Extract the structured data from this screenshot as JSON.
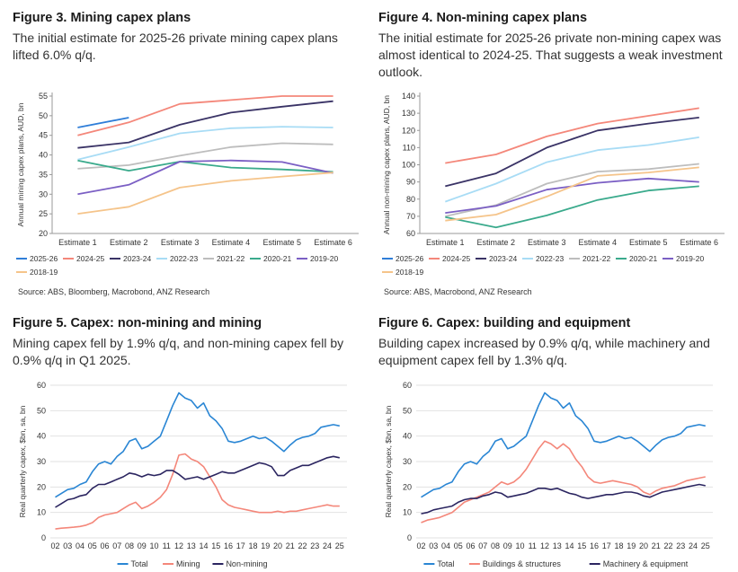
{
  "figures": [
    {
      "title": "Figure 3. Mining capex plans",
      "subtitle": "The initial estimate for 2025-26 private mining capex plans lifted 6.0% q/q.",
      "source": "Source: ABS, Bloomberg, Macrobond, ANZ Research"
    },
    {
      "title": "Figure 4. Non-mining capex plans",
      "subtitle": "The initial estimate for 2025-26 private non-mining capex was almost identical to 2024-25. That suggests a weak investment outlook.",
      "source": "Source: ABS, Macrobond, ANZ Research"
    },
    {
      "title": "Figure 5. Capex: non-mining and mining",
      "subtitle": "Mining capex fell by 1.9% q/q, and non-mining capex fell by 0.9% q/q in Q1 2025.",
      "source": ""
    },
    {
      "title": "Figure 6. Capex: building and equipment",
      "subtitle": "Building capex increased by 0.9% q/q, while machinery and equipment capex fell by 1.3% q/q.",
      "source": ""
    }
  ],
  "chart_data": [
    {
      "type": "line",
      "title": "Figure 3. Mining capex plans",
      "ylabel": "Annual mining capex plans, AUD, bn",
      "ylim": [
        20,
        55
      ],
      "yticks": [
        20,
        25,
        30,
        35,
        40,
        45,
        50,
        55
      ],
      "categories": [
        "Estimate 1",
        "Estimate 2",
        "Estimate 3",
        "Estimate 4",
        "Estimate 5",
        "Estimate 6"
      ],
      "series": [
        {
          "name": "2025-26",
          "color": "#2f7ed8",
          "values": [
            47,
            49.5,
            null,
            null,
            null,
            null
          ]
        },
        {
          "name": "2024-25",
          "color": "#f4877a",
          "values": [
            45,
            48.3,
            53,
            54,
            55,
            55
          ]
        },
        {
          "name": "2023-24",
          "color": "#3a3366",
          "values": [
            41.8,
            43.2,
            47.7,
            50.8,
            52.3,
            53.7
          ]
        },
        {
          "name": "2022-23",
          "color": "#a8dcf5",
          "values": [
            38.8,
            42,
            45.5,
            46.8,
            47.2,
            47
          ]
        },
        {
          "name": "2021-22",
          "color": "#bdbdbd",
          "values": [
            36.5,
            37.4,
            39.8,
            42,
            43,
            42.7
          ]
        },
        {
          "name": "2020-21",
          "color": "#3aaa8c",
          "values": [
            38.6,
            36,
            38.3,
            36.8,
            36.3,
            35.7
          ]
        },
        {
          "name": "2019-20",
          "color": "#7b5fc4",
          "values": [
            30,
            32.4,
            38.3,
            38.6,
            38.2,
            35.4
          ]
        },
        {
          "name": "2018-19",
          "color": "#f5c48a",
          "values": [
            25,
            26.8,
            31.7,
            33.4,
            34.5,
            35.5
          ]
        }
      ]
    },
    {
      "type": "line",
      "title": "Figure 4. Non-mining capex plans",
      "ylabel": "Annual non-mining capex plans, AUD, bn",
      "ylim": [
        60,
        140
      ],
      "yticks": [
        60,
        70,
        80,
        90,
        100,
        110,
        120,
        130,
        140
      ],
      "categories": [
        "Estimate 1",
        "Estimate 2",
        "Estimate 3",
        "Estimate 4",
        "Estimate 5",
        "Estimate 6"
      ],
      "series": [
        {
          "name": "2025-26",
          "color": "#2f7ed8",
          "values": [
            101,
            null,
            null,
            null,
            null,
            null
          ]
        },
        {
          "name": "2024-25",
          "color": "#f4877a",
          "values": [
            101,
            106,
            116.5,
            124,
            128.5,
            133
          ]
        },
        {
          "name": "2023-24",
          "color": "#3a3366",
          "values": [
            87.5,
            95,
            110,
            120,
            124,
            127.5
          ]
        },
        {
          "name": "2022-23",
          "color": "#a8dcf5",
          "values": [
            78.5,
            89,
            101.5,
            108.5,
            111.5,
            116
          ]
        },
        {
          "name": "2021-22",
          "color": "#bdbdbd",
          "values": [
            70,
            76.5,
            89,
            96,
            97.5,
            100.5
          ]
        },
        {
          "name": "2020-21",
          "color": "#3aaa8c",
          "values": [
            69.5,
            63.5,
            70.5,
            79.5,
            85,
            87.5
          ]
        },
        {
          "name": "2019-20",
          "color": "#7b5fc4",
          "values": [
            72,
            76,
            85.5,
            89.5,
            92,
            90
          ]
        },
        {
          "name": "2018-19",
          "color": "#f5c48a",
          "values": [
            67.5,
            71,
            81.5,
            93.5,
            95.5,
            98.5
          ]
        }
      ]
    },
    {
      "type": "line",
      "title": "Figure 5. Capex: non-mining and mining",
      "ylabel": "Real quarterly capex, $bn, sa, bn",
      "ylim": [
        0,
        60
      ],
      "yticks": [
        0,
        10,
        20,
        30,
        40,
        50,
        60
      ],
      "xtick_labels": [
        "02",
        "03",
        "04",
        "05",
        "06",
        "07",
        "08",
        "09",
        "10",
        "11",
        "12",
        "13",
        "14",
        "15",
        "16",
        "17",
        "18",
        "19",
        "20",
        "21",
        "22",
        "23",
        "24",
        "25"
      ],
      "xstart": 2002,
      "xlim": [
        2001.6,
        2025.6
      ],
      "series": [
        {
          "name": "Total",
          "color": "#2a86d4",
          "x": [
            2002.0,
            2002.5,
            2003.0,
            2003.5,
            2004.0,
            2004.5,
            2005.0,
            2005.5,
            2006.0,
            2006.5,
            2007.0,
            2007.5,
            2008.0,
            2008.5,
            2009.0,
            2009.5,
            2010.0,
            2010.5,
            2011.0,
            2011.5,
            2012.0,
            2012.5,
            2013.0,
            2013.5,
            2014.0,
            2014.5,
            2015.0,
            2015.5,
            2016.0,
            2016.5,
            2017.0,
            2017.5,
            2018.0,
            2018.5,
            2019.0,
            2019.5,
            2020.0,
            2020.5,
            2021.0,
            2021.5,
            2022.0,
            2022.5,
            2023.0,
            2023.5,
            2024.0,
            2024.5,
            2025.0
          ],
          "values": [
            16,
            17.5,
            19,
            19.5,
            21,
            22,
            26,
            29,
            30,
            29,
            32,
            34,
            38,
            39,
            35,
            36,
            38,
            40,
            46,
            52,
            57,
            55,
            54,
            51,
            53,
            48,
            46,
            43,
            38,
            37.5,
            38,
            39,
            40,
            39,
            39.5,
            38,
            36,
            34,
            36.5,
            38.5,
            39.5,
            40,
            41,
            43.5,
            44,
            44.5,
            44
          ]
        },
        {
          "name": "Mining",
          "color": "#f4877a",
          "x": [
            2002.0,
            2002.5,
            2003.0,
            2003.5,
            2004.0,
            2004.5,
            2005.0,
            2005.5,
            2006.0,
            2006.5,
            2007.0,
            2007.5,
            2008.0,
            2008.5,
            2009.0,
            2009.5,
            2010.0,
            2010.5,
            2011.0,
            2011.5,
            2012.0,
            2012.5,
            2013.0,
            2013.5,
            2014.0,
            2014.5,
            2015.0,
            2015.5,
            2016.0,
            2016.5,
            2017.0,
            2017.5,
            2018.0,
            2018.5,
            2019.0,
            2019.5,
            2020.0,
            2020.5,
            2021.0,
            2021.5,
            2022.0,
            2022.5,
            2023.0,
            2023.5,
            2024.0,
            2024.5,
            2025.0
          ],
          "values": [
            3.5,
            3.8,
            4,
            4.2,
            4.5,
            5,
            6,
            8,
            9,
            9.5,
            10,
            11.5,
            13,
            14,
            11.5,
            12.5,
            14,
            16,
            19,
            25,
            32.5,
            33,
            31,
            30,
            28,
            24,
            20,
            15,
            13,
            12,
            11.5,
            11,
            10.5,
            10,
            10,
            10,
            10.5,
            10,
            10.5,
            10.5,
            11,
            11.5,
            12,
            12.5,
            13,
            12.5,
            12.5
          ]
        },
        {
          "name": "Non-mining",
          "color": "#2b2560",
          "x": [
            2002.0,
            2002.5,
            2003.0,
            2003.5,
            2004.0,
            2004.5,
            2005.0,
            2005.5,
            2006.0,
            2006.5,
            2007.0,
            2007.5,
            2008.0,
            2008.5,
            2009.0,
            2009.5,
            2010.0,
            2010.5,
            2011.0,
            2011.5,
            2012.0,
            2012.5,
            2013.0,
            2013.5,
            2014.0,
            2014.5,
            2015.0,
            2015.5,
            2016.0,
            2016.5,
            2017.0,
            2017.5,
            2018.0,
            2018.5,
            2019.0,
            2019.5,
            2020.0,
            2020.5,
            2021.0,
            2021.5,
            2022.0,
            2022.5,
            2023.0,
            2023.5,
            2024.0,
            2024.5,
            2025.0
          ],
          "values": [
            12,
            13.5,
            15,
            15.5,
            16.5,
            17,
            19.5,
            21,
            21,
            22,
            23,
            24,
            25.5,
            25,
            24,
            25,
            24.5,
            25,
            26.5,
            26.5,
            25,
            23,
            23.5,
            24,
            23,
            24,
            25,
            26,
            25.5,
            25.5,
            26.5,
            27.5,
            28.5,
            29.5,
            29,
            28,
            24.5,
            24.5,
            26.5,
            27.5,
            28.5,
            28.5,
            29.5,
            30.5,
            31.5,
            32,
            31.5
          ]
        }
      ]
    },
    {
      "type": "line",
      "title": "Figure 6. Capex: building and equipment",
      "ylabel": "Real quarterly capex, $bn, sa, bn",
      "ylim": [
        0,
        60
      ],
      "yticks": [
        0,
        10,
        20,
        30,
        40,
        50,
        60
      ],
      "xtick_labels": [
        "02",
        "03",
        "04",
        "05",
        "06",
        "07",
        "08",
        "09",
        "10",
        "11",
        "12",
        "13",
        "14",
        "15",
        "16",
        "17",
        "18",
        "19",
        "20",
        "21",
        "22",
        "23",
        "24",
        "25"
      ],
      "xstart": 2002,
      "xlim": [
        2001.6,
        2025.6
      ],
      "series": [
        {
          "name": "Total",
          "color": "#2a86d4",
          "x": [
            2002.0,
            2002.5,
            2003.0,
            2003.5,
            2004.0,
            2004.5,
            2005.0,
            2005.5,
            2006.0,
            2006.5,
            2007.0,
            2007.5,
            2008.0,
            2008.5,
            2009.0,
            2009.5,
            2010.0,
            2010.5,
            2011.0,
            2011.5,
            2012.0,
            2012.5,
            2013.0,
            2013.5,
            2014.0,
            2014.5,
            2015.0,
            2015.5,
            2016.0,
            2016.5,
            2017.0,
            2017.5,
            2018.0,
            2018.5,
            2019.0,
            2019.5,
            2020.0,
            2020.5,
            2021.0,
            2021.5,
            2022.0,
            2022.5,
            2023.0,
            2023.5,
            2024.0,
            2024.5,
            2025.0
          ],
          "values": [
            16,
            17.5,
            19,
            19.5,
            21,
            22,
            26,
            29,
            30,
            29,
            32,
            34,
            38,
            39,
            35,
            36,
            38,
            40,
            46,
            52,
            57,
            55,
            54,
            51,
            53,
            48,
            46,
            43,
            38,
            37.5,
            38,
            39,
            40,
            39,
            39.5,
            38,
            36,
            34,
            36.5,
            38.5,
            39.5,
            40,
            41,
            43.5,
            44,
            44.5,
            44
          ]
        },
        {
          "name": "Buildings & structures",
          "color": "#f4877a",
          "x": [
            2002.0,
            2002.5,
            2003.0,
            2003.5,
            2004.0,
            2004.5,
            2005.0,
            2005.5,
            2006.0,
            2006.5,
            2007.0,
            2007.5,
            2008.0,
            2008.5,
            2009.0,
            2009.5,
            2010.0,
            2010.5,
            2011.0,
            2011.5,
            2012.0,
            2012.5,
            2013.0,
            2013.5,
            2014.0,
            2014.5,
            2015.0,
            2015.5,
            2016.0,
            2016.5,
            2017.0,
            2017.5,
            2018.0,
            2018.5,
            2019.0,
            2019.5,
            2020.0,
            2020.5,
            2021.0,
            2021.5,
            2022.0,
            2022.5,
            2023.0,
            2023.5,
            2024.0,
            2024.5,
            2025.0
          ],
          "values": [
            6,
            7,
            7.5,
            8,
            9,
            10,
            12,
            14,
            15,
            16,
            17,
            18,
            20,
            22,
            21,
            22,
            24,
            27,
            31,
            35,
            38,
            37,
            35,
            37,
            35,
            31,
            28,
            24,
            22,
            21.5,
            22,
            22.5,
            22,
            21.5,
            21,
            20,
            18,
            17,
            18.5,
            19.5,
            20,
            20.5,
            21.5,
            22.5,
            23,
            23.5,
            24
          ]
        },
        {
          "name": "Machinery & equipment",
          "color": "#2b2560",
          "x": [
            2002.0,
            2002.5,
            2003.0,
            2003.5,
            2004.0,
            2004.5,
            2005.0,
            2005.5,
            2006.0,
            2006.5,
            2007.0,
            2007.5,
            2008.0,
            2008.5,
            2009.0,
            2009.5,
            2010.0,
            2010.5,
            2011.0,
            2011.5,
            2012.0,
            2012.5,
            2013.0,
            2013.5,
            2014.0,
            2014.5,
            2015.0,
            2015.5,
            2016.0,
            2016.5,
            2017.0,
            2017.5,
            2018.0,
            2018.5,
            2019.0,
            2019.5,
            2020.0,
            2020.5,
            2021.0,
            2021.5,
            2022.0,
            2022.5,
            2023.0,
            2023.5,
            2024.0,
            2024.5,
            2025.0
          ],
          "values": [
            9.5,
            10,
            11,
            11.5,
            12,
            12.5,
            14,
            15,
            15.5,
            15.5,
            16.5,
            17,
            18,
            17.5,
            16,
            16.5,
            17,
            17.5,
            18.5,
            19.5,
            19.5,
            19,
            19.5,
            18.5,
            17.5,
            17,
            16,
            15.5,
            16,
            16.5,
            17,
            17,
            17.5,
            18,
            18,
            17.5,
            16.5,
            16,
            17,
            18,
            18.5,
            19,
            19.5,
            20,
            20.5,
            21,
            20.5
          ]
        }
      ]
    }
  ]
}
